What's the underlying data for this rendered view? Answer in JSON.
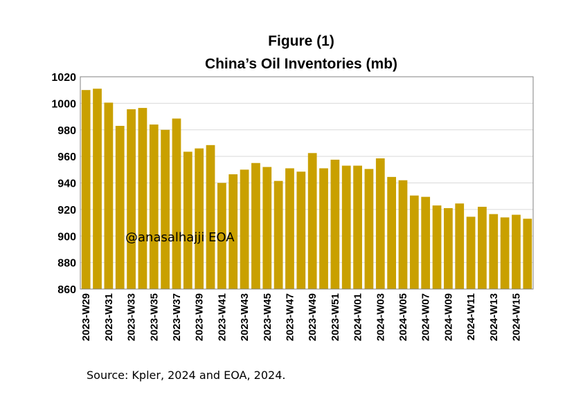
{
  "title_line1": "Figure (1)",
  "title_line2": "China’s Oil Inventories (mb)",
  "watermark": "@anasalhajji EOA",
  "source": "Source: Kpler, 2024 and EOA, 2024.",
  "colors": {
    "bar": "#C9A000",
    "grid": "#D9D9D9",
    "axis": "#808080"
  },
  "chart_data": {
    "type": "bar",
    "title": "China’s Oil Inventories (mb)",
    "ylim": [
      860,
      1020
    ],
    "yticks": [
      860,
      880,
      900,
      920,
      940,
      960,
      980,
      1000,
      1020
    ],
    "grid": true,
    "categories": [
      "2023-W29",
      "2023-W30",
      "2023-W31",
      "2023-W32",
      "2023-W33",
      "2023-W34",
      "2023-W35",
      "2023-W36",
      "2023-W37",
      "2023-W38",
      "2023-W39",
      "2023-W40",
      "2023-W41",
      "2023-W42",
      "2023-W43",
      "2023-W44",
      "2023-W45",
      "2023-W46",
      "2023-W47",
      "2023-W48",
      "2023-W49",
      "2023-W50",
      "2023-W51",
      "2023-W52",
      "2024-W01",
      "2024-W02",
      "2024-W03",
      "2024-W04",
      "2024-W05",
      "2024-W06",
      "2024-W07",
      "2024-W08",
      "2024-W09",
      "2024-W10",
      "2024-W11",
      "2024-W12",
      "2024-W13",
      "2024-W14",
      "2024-W15",
      "2024-W16"
    ],
    "xtick_labels": [
      "2023-W29",
      "2023-W31",
      "2023-W33",
      "2023-W35",
      "2023-W37",
      "2023-W39",
      "2023-W41",
      "2023-W43",
      "2023-W45",
      "2023-W47",
      "2023-W49",
      "2023-W51",
      "2024-W01",
      "2024-W03",
      "2024-W05",
      "2024-W07",
      "2024-W09",
      "2024-W11",
      "2024-W13",
      "2024-W15"
    ],
    "values": [
      1010,
      1011,
      1000.5,
      983,
      995.5,
      996.5,
      984,
      980,
      988.5,
      963.5,
      966,
      968.5,
      940,
      946.5,
      950,
      955,
      952,
      941.5,
      951,
      948.5,
      962.5,
      951,
      957.5,
      953,
      953,
      950.5,
      958.5,
      944.5,
      942,
      930.5,
      929.5,
      923,
      921,
      924.5,
      914.5,
      922,
      916.5,
      914,
      916,
      913
    ]
  }
}
